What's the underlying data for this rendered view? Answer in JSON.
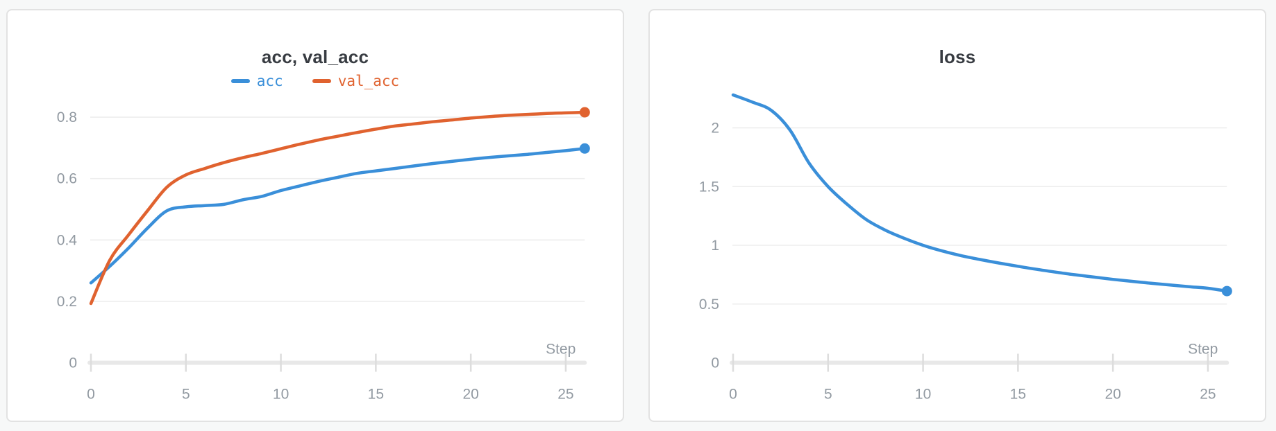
{
  "page": {
    "background_color": "#f7f8f8",
    "card_background": "#ffffff",
    "card_border_color": "#e2e2e2"
  },
  "theme": {
    "grid_color": "#ededed",
    "axis_line_color": "#e8e8e8",
    "tick_color": "#dddddd",
    "axis_label_color": "#9199a1",
    "title_color": "#383c42",
    "series_blue": "#3a8fd9",
    "series_orange": "#e0622f"
  },
  "chart_data": [
    {
      "type": "line",
      "title": "acc, val_acc",
      "xlabel": "Step",
      "legend_position": "top-center",
      "grid": "horizontal",
      "xlim": [
        0,
        26
      ],
      "ylim": [
        0,
        0.85
      ],
      "x_ticks": [
        0,
        5,
        10,
        15,
        20,
        25
      ],
      "x_tick_labels": [
        "0",
        "5",
        "10",
        "15",
        "20",
        "25"
      ],
      "y_ticks": [
        0,
        0.2,
        0.4,
        0.6,
        0.8
      ],
      "y_tick_labels": [
        "0",
        "0.2",
        "0.4",
        "0.6",
        "0.8"
      ],
      "x": [
        0,
        1,
        2,
        3,
        4,
        5,
        6,
        7,
        8,
        9,
        10,
        11,
        12,
        13,
        14,
        15,
        16,
        17,
        18,
        19,
        20,
        21,
        22,
        23,
        24,
        25,
        26
      ],
      "series": [
        {
          "name": "acc",
          "color": "#3a8fd9",
          "end_dot": true,
          "values": [
            0.26,
            0.315,
            0.375,
            0.44,
            0.495,
            0.508,
            0.512,
            0.516,
            0.531,
            0.542,
            0.561,
            0.576,
            0.591,
            0.604,
            0.617,
            0.625,
            0.633,
            0.641,
            0.649,
            0.656,
            0.663,
            0.669,
            0.674,
            0.679,
            0.685,
            0.691,
            0.698
          ]
        },
        {
          "name": "val_acc",
          "color": "#e0622f",
          "end_dot": true,
          "values": [
            0.193,
            0.335,
            0.418,
            0.497,
            0.572,
            0.612,
            0.633,
            0.652,
            0.668,
            0.682,
            0.697,
            0.712,
            0.726,
            0.738,
            0.75,
            0.761,
            0.771,
            0.778,
            0.785,
            0.791,
            0.797,
            0.802,
            0.806,
            0.809,
            0.812,
            0.814,
            0.816
          ]
        }
      ]
    },
    {
      "type": "line",
      "title": "loss",
      "xlabel": "Step",
      "legend_position": "none",
      "grid": "horizontal",
      "xlim": [
        0,
        26
      ],
      "ylim": [
        0,
        2.35
      ],
      "x_ticks": [
        0,
        5,
        10,
        15,
        20,
        25
      ],
      "x_tick_labels": [
        "0",
        "5",
        "10",
        "15",
        "20",
        "25"
      ],
      "y_ticks": [
        0,
        0.5,
        1,
        1.5,
        2
      ],
      "y_tick_labels": [
        "0",
        "0.5",
        "1",
        "1.5",
        "2"
      ],
      "x": [
        0,
        1,
        2,
        3,
        4,
        5,
        6,
        7,
        8,
        9,
        10,
        11,
        12,
        13,
        14,
        15,
        16,
        17,
        18,
        19,
        20,
        21,
        22,
        23,
        24,
        25,
        26
      ],
      "series": [
        {
          "name": "loss",
          "color": "#3a8fd9",
          "end_dot": true,
          "values": [
            2.28,
            2.22,
            2.15,
            1.98,
            1.7,
            1.5,
            1.35,
            1.22,
            1.13,
            1.06,
            1.0,
            0.952,
            0.912,
            0.879,
            0.849,
            0.821,
            0.795,
            0.771,
            0.749,
            0.729,
            0.71,
            0.693,
            0.677,
            0.662,
            0.648,
            0.634,
            0.61
          ]
        }
      ]
    }
  ]
}
